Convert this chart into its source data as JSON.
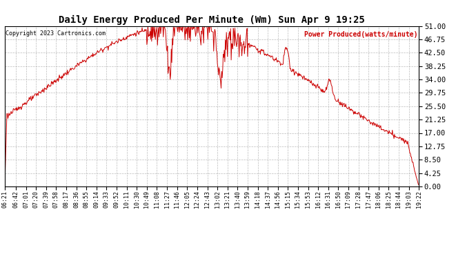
{
  "title": "Daily Energy Produced Per Minute (Wm) Sun Apr 9 19:25",
  "copyright": "Copyright 2023 Cartronics.com",
  "legend_label": "Power Produced(watts/minute)",
  "ylabel_ticks": [
    0.0,
    4.25,
    8.5,
    12.75,
    17.0,
    21.25,
    25.5,
    29.75,
    34.0,
    38.25,
    42.5,
    46.75,
    51.0
  ],
  "ymin": 0.0,
  "ymax": 51.0,
  "line_color": "#cc0000",
  "grid_color": "#aaaaaa",
  "bg_color": "#ffffff",
  "title_color": "#000000",
  "copyright_color": "#000000",
  "legend_color": "#cc0000",
  "tick_labels": [
    "06:21",
    "06:42",
    "07:01",
    "07:20",
    "07:39",
    "07:58",
    "08:17",
    "08:36",
    "08:55",
    "09:14",
    "09:33",
    "09:52",
    "10:11",
    "10:30",
    "10:49",
    "11:08",
    "11:27",
    "11:46",
    "12:05",
    "12:24",
    "12:43",
    "13:02",
    "13:21",
    "13:40",
    "13:59",
    "14:18",
    "14:37",
    "14:56",
    "15:15",
    "15:34",
    "15:53",
    "16:12",
    "16:31",
    "16:50",
    "17:09",
    "17:28",
    "17:47",
    "18:06",
    "18:25",
    "18:44",
    "19:03",
    "19:22"
  ]
}
